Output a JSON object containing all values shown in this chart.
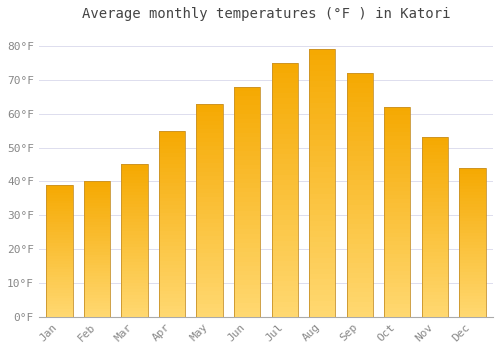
{
  "title": "Average monthly temperatures (°F ) in Katori",
  "months": [
    "Jan",
    "Feb",
    "Mar",
    "Apr",
    "May",
    "Jun",
    "Jul",
    "Aug",
    "Sep",
    "Oct",
    "Nov",
    "Dec"
  ],
  "values": [
    39,
    40,
    45,
    55,
    63,
    68,
    75,
    79,
    72,
    62,
    53,
    44
  ],
  "bar_color_top": "#F5A800",
  "bar_color_bottom": "#FFD870",
  "bar_edge_color": "#C8922A",
  "background_color": "#FFFFFF",
  "plot_bg_color": "#FFFFFF",
  "grid_color": "#DDDDEE",
  "ylim": [
    0,
    85
  ],
  "yticks": [
    0,
    10,
    20,
    30,
    40,
    50,
    60,
    70,
    80
  ],
  "ytick_labels": [
    "0°F",
    "10°F",
    "20°F",
    "30°F",
    "40°F",
    "50°F",
    "60°F",
    "70°F",
    "80°F"
  ],
  "title_fontsize": 10,
  "tick_fontsize": 8,
  "title_color": "#444444",
  "tick_color": "#888888",
  "font_family": "monospace",
  "bar_width": 0.7,
  "figsize": [
    5.0,
    3.5
  ],
  "dpi": 100
}
